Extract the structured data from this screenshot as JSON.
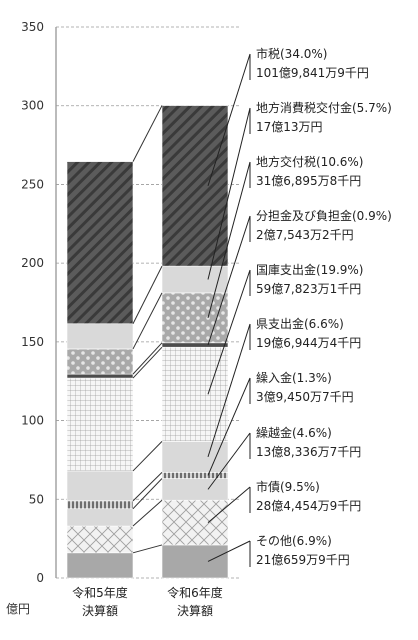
{
  "chart_data": {
    "type": "bar",
    "stacked": true,
    "unit": "億円",
    "ylim": [
      0,
      350
    ],
    "yticks": [
      0,
      50,
      100,
      150,
      200,
      250,
      300,
      350
    ],
    "grid": "dashed horizontal",
    "categories": [
      [
        "令和5年度",
        "決算額"
      ],
      [
        "令和6年度",
        "決算額"
      ]
    ],
    "series": [
      {
        "name": "その他",
        "pct": "(6.9%)",
        "amount": "21億659万9千円",
        "values": [
          16,
          21
        ],
        "pattern": "solid-gray"
      },
      {
        "name": "市債",
        "pct": "(9.5%)",
        "amount": "28億4,454万9千円",
        "values": [
          17,
          28.4
        ],
        "pattern": "cross-hatch"
      },
      {
        "name": "繰越金",
        "pct": "(4.6%)",
        "amount": "13億8,336万7千円",
        "values": [
          11,
          13.8
        ],
        "pattern": "light-gray"
      },
      {
        "name": "繰入金",
        "pct": "(1.3%)",
        "amount": "3億9,450万7千円",
        "values": [
          5,
          3.9
        ],
        "pattern": "vertical-stripes"
      },
      {
        "name": "県支出金",
        "pct": "(6.6%)",
        "amount": "19億6,944万4千円",
        "values": [
          19,
          19.7
        ],
        "pattern": "light-gray"
      },
      {
        "name": "国庫支出金",
        "pct": "(19.9%)",
        "amount": "59億7,823万1千円",
        "values": [
          59,
          59.8
        ],
        "pattern": "grid"
      },
      {
        "name": "分担金及び負担金",
        "pct": "(0.9%)",
        "amount": "2億7,543万2千円",
        "values": [
          2.5,
          2.8
        ],
        "pattern": "solid-dark"
      },
      {
        "name": "地方交付税",
        "pct": "(10.6%)",
        "amount": "31億6,895万8千円",
        "values": [
          16,
          31.7
        ],
        "pattern": "dots"
      },
      {
        "name": "地方消費税交付金",
        "pct": "(5.7%)",
        "amount": "17億13万円",
        "values": [
          16,
          17
        ],
        "pattern": "light-gray"
      },
      {
        "name": "市税",
        "pct": "(34.0%)",
        "amount": "101億9,841万9千円",
        "values": [
          103,
          102
        ],
        "pattern": "diagonal-dark"
      }
    ]
  }
}
